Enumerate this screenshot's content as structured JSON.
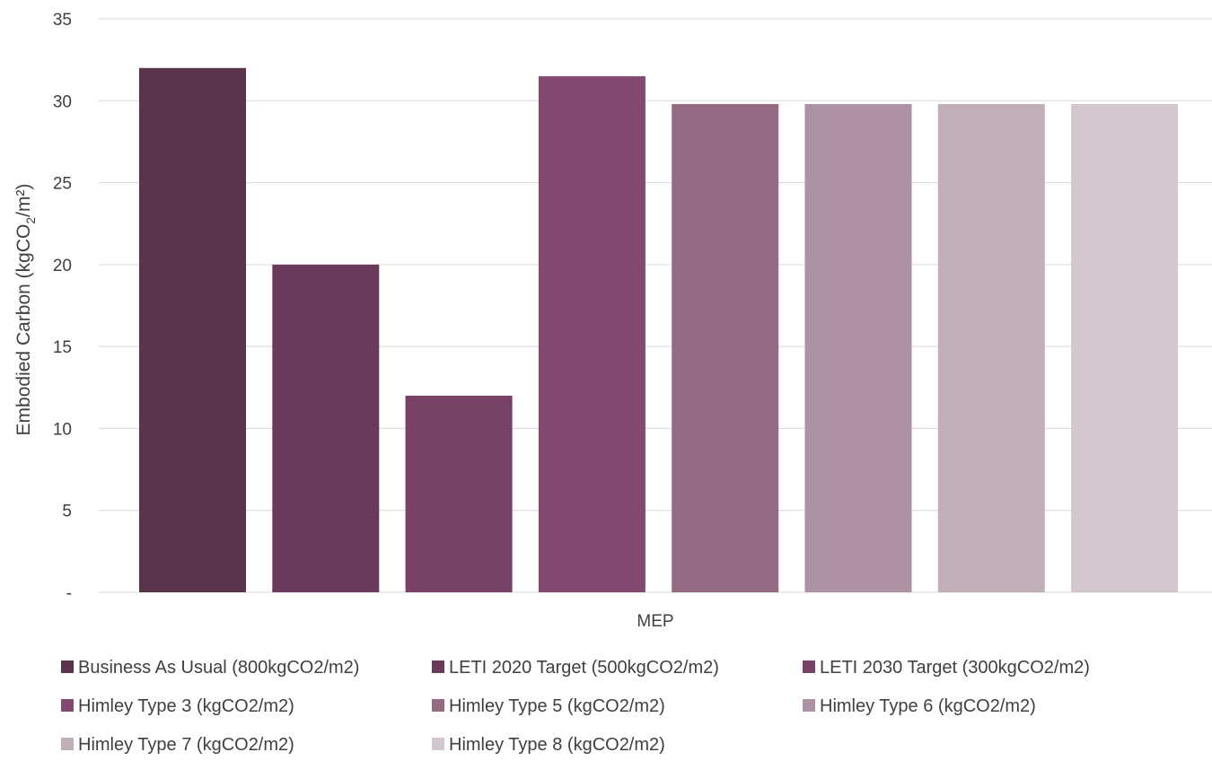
{
  "chart_data": {
    "type": "bar",
    "categories": [
      "MEP"
    ],
    "series": [
      {
        "name": "Business As Usual (800kgCO2/m2)",
        "values": [
          32.0
        ],
        "color": "#5b334c"
      },
      {
        "name": "LETI 2020 Target (500kgCO2/m2)",
        "values": [
          20.0
        ],
        "color": "#6a3a5a"
      },
      {
        "name": "LETI 2030 Target (300kgCO2/m2)",
        "values": [
          12.0
        ],
        "color": "#774265"
      },
      {
        "name": "Himley Type 3 (kgCO2/m2)",
        "values": [
          31.5
        ],
        "color": "#824a70"
      },
      {
        "name": "Himley Type 5 (kgCO2/m2)",
        "values": [
          29.8
        ],
        "color": "#946a84"
      },
      {
        "name": "Himley Type 6 (kgCO2/m2)",
        "values": [
          29.8
        ],
        "color": "#ac92a4"
      },
      {
        "name": "Himley Type 7 (kgCO2/m2)",
        "values": [
          29.8
        ],
        "color": "#c0aeb8"
      },
      {
        "name": "Himley Type 8 (kgCO2/m2)",
        "values": [
          29.8
        ],
        "color": "#d3c6ce"
      }
    ],
    "ylim": [
      0,
      35
    ],
    "yticks": [
      {
        "value": 0,
        "label": "-"
      },
      {
        "value": 5,
        "label": "5"
      },
      {
        "value": 10,
        "label": "10"
      },
      {
        "value": 15,
        "label": "15"
      },
      {
        "value": 20,
        "label": "20"
      },
      {
        "value": 25,
        "label": "25"
      },
      {
        "value": 30,
        "label": "30"
      },
      {
        "value": 35,
        "label": "35"
      }
    ],
    "ylabel_prefix": "Embodied Carbon (kgCO",
    "ylabel_sub": "2",
    "ylabel_suffix": "/m²)",
    "xlabel": "",
    "grid": true,
    "legend_position": "bottom"
  }
}
